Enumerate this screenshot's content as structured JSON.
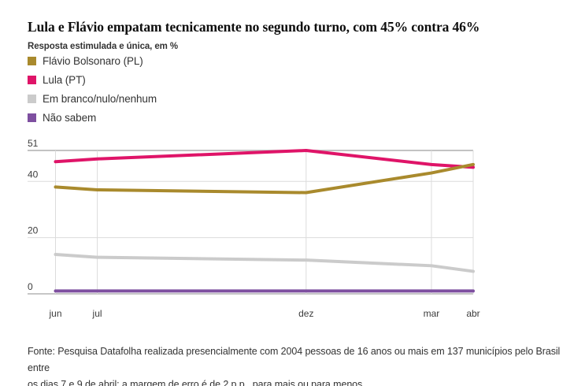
{
  "title": "Lula e Flávio empatam tecnicamente no segundo turno, com 45% contra 46%",
  "subtitle": "Resposta estimulada e única, em %",
  "legend": [
    {
      "label": "Flávio Bolsonaro (PL)",
      "color": "#a98a2d"
    },
    {
      "label": "Lula (PT)",
      "color": "#df1468"
    },
    {
      "label": "Em branco/nulo/nenhum",
      "color": "#cbcbcb"
    },
    {
      "label": "Não sabem",
      "color": "#7e4fa0"
    }
  ],
  "chart_data": {
    "type": "line",
    "title": "Lula e Flávio empatam tecnicamente no segundo turno, com 45% contra 46%",
    "subtitle": "Resposta estimulada e única, em %",
    "x_tick_labels": [
      "jun",
      "jul",
      "dez",
      "mar",
      "abr"
    ],
    "x_month_offsets": [
      0,
      1,
      6,
      9,
      10
    ],
    "series": [
      {
        "name": "Flávio Bolsonaro (PL)",
        "color": "#a98a2d",
        "values": [
          38,
          37,
          36,
          43,
          46
        ]
      },
      {
        "name": "Lula (PT)",
        "color": "#df1468",
        "values": [
          47,
          48,
          51,
          46,
          45
        ]
      },
      {
        "name": "Em branco/nulo/nenhum",
        "color": "#cbcbcb",
        "values": [
          14,
          13,
          12,
          10,
          8
        ]
      },
      {
        "name": "Não sabem",
        "color": "#7e4fa0",
        "values": [
          1,
          1,
          1,
          1,
          1
        ]
      }
    ],
    "y_ticks": [
      0,
      20,
      40,
      51
    ],
    "ylim": [
      0,
      51
    ],
    "grid": true,
    "legend_position": "top-left",
    "unit": "%"
  },
  "footer_lines": [
    "Fonte: Pesquisa Datafolha realizada presencialmente com 2004 pessoas de 16 anos ou mais em 137 municípios pelo Brasil entre",
    "os dias 7 e 9 de abril; a margem de erro é de 2 p.p., para mais ou para menos"
  ],
  "colors": {
    "gridline": "#dcdcdc",
    "gridline_top": "#c3c3c3",
    "baseline": "#a3a3a3",
    "tick_text": "#3c3c3c"
  }
}
